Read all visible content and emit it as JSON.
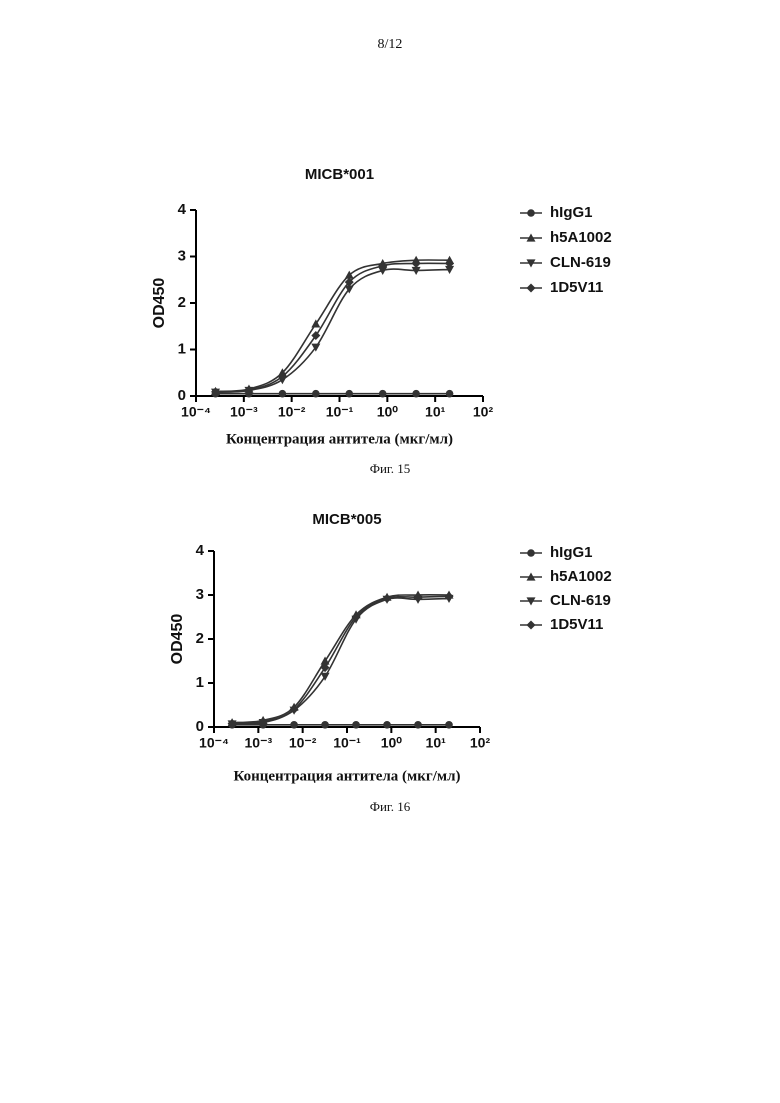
{
  "page_number": "8/12",
  "chart_data": [
    {
      "type": "line",
      "title": "MICB*001",
      "caption": "Фиг. 15",
      "x_label": "Концентрация антитела (мкг/мл)",
      "y_label": "OD450",
      "x_scale": "log",
      "xlim": [
        0.0001,
        100
      ],
      "xticks": [
        {
          "value": 0.0001,
          "label": "10⁻⁴"
        },
        {
          "value": 0.001,
          "label": "10⁻³"
        },
        {
          "value": 0.01,
          "label": "10⁻²"
        },
        {
          "value": 0.1,
          "label": "10⁻¹"
        },
        {
          "value": 1,
          "label": "10⁰"
        },
        {
          "value": 10,
          "label": "10¹"
        },
        {
          "value": 100,
          "label": "10²"
        }
      ],
      "ylim": [
        0,
        4
      ],
      "yticks": [
        0,
        1,
        2,
        3,
        4
      ],
      "legend": "right",
      "x": [
        0.000256,
        0.00128,
        0.0064,
        0.032,
        0.16,
        0.8,
        4,
        20
      ],
      "series": [
        {
          "name": "hIgG1",
          "color": "#333333",
          "marker": "circle",
          "values": [
            0.05,
            0.05,
            0.05,
            0.05,
            0.05,
            0.05,
            0.05,
            0.05
          ]
        },
        {
          "name": "h5A1002",
          "color": "#333333",
          "marker": "triangle-up",
          "values": [
            0.1,
            0.15,
            0.5,
            1.55,
            2.6,
            2.85,
            2.92,
            2.92
          ]
        },
        {
          "name": "CLN-619",
          "color": "#333333",
          "marker": "triangle-down",
          "values": [
            0.08,
            0.12,
            0.35,
            1.05,
            2.3,
            2.7,
            2.7,
            2.72
          ]
        },
        {
          "name": "1D5V11",
          "color": "#333333",
          "marker": "diamond",
          "values": [
            0.09,
            0.13,
            0.42,
            1.3,
            2.45,
            2.8,
            2.85,
            2.85
          ]
        }
      ]
    },
    {
      "type": "line",
      "title": "MICB*005",
      "caption": "Фиг. 16",
      "x_label": "Концентрация антитела (мкг/мл)",
      "y_label": "OD450",
      "x_scale": "log",
      "xlim": [
        0.0001,
        100
      ],
      "xticks": [
        {
          "value": 0.0001,
          "label": "10⁻⁴"
        },
        {
          "value": 0.001,
          "label": "10⁻³"
        },
        {
          "value": 0.01,
          "label": "10⁻²"
        },
        {
          "value": 0.1,
          "label": "10⁻¹"
        },
        {
          "value": 1,
          "label": "10⁰"
        },
        {
          "value": 10,
          "label": "10¹"
        },
        {
          "value": 100,
          "label": "10²"
        }
      ],
      "ylim": [
        0,
        4
      ],
      "yticks": [
        0,
        1,
        2,
        3,
        4
      ],
      "legend": "right",
      "x": [
        0.000256,
        0.00128,
        0.0064,
        0.032,
        0.16,
        0.8,
        4,
        20
      ],
      "series": [
        {
          "name": "hIgG1",
          "color": "#333333",
          "marker": "circle",
          "values": [
            0.05,
            0.05,
            0.05,
            0.05,
            0.05,
            0.05,
            0.05,
            0.05
          ]
        },
        {
          "name": "h5A1002",
          "color": "#333333",
          "marker": "triangle-up",
          "values": [
            0.1,
            0.15,
            0.45,
            1.5,
            2.55,
            2.95,
            3.0,
            3.0
          ]
        },
        {
          "name": "CLN-619",
          "color": "#333333",
          "marker": "triangle-down",
          "values": [
            0.07,
            0.1,
            0.38,
            1.15,
            2.45,
            2.9,
            2.9,
            2.92
          ]
        },
        {
          "name": "1D5V11",
          "color": "#333333",
          "marker": "diamond",
          "values": [
            0.08,
            0.12,
            0.4,
            1.35,
            2.5,
            2.92,
            2.95,
            2.97
          ]
        }
      ]
    }
  ]
}
